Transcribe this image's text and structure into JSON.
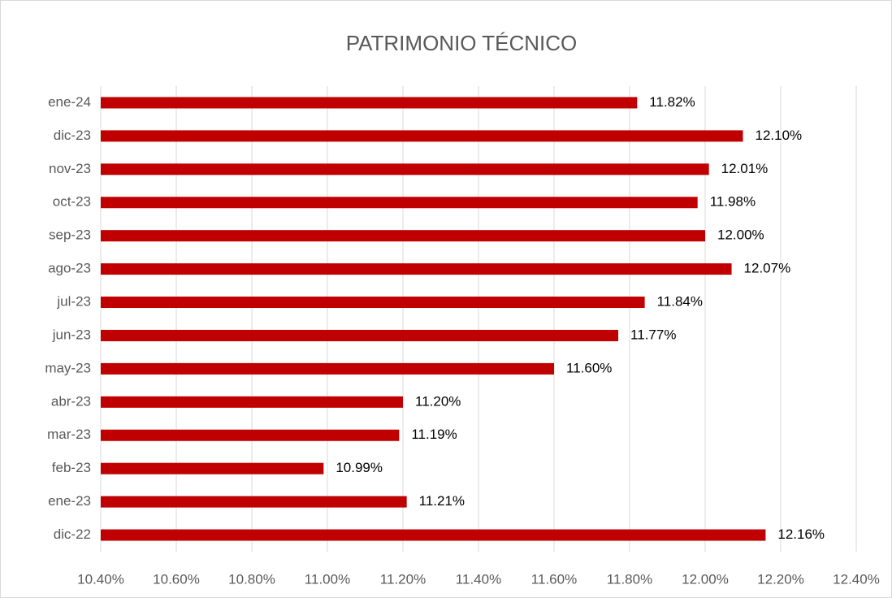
{
  "chart_data": {
    "type": "bar",
    "orientation": "horizontal",
    "title": "PATRIMONIO TÉCNICO",
    "categories": [
      "ene-24",
      "dic-23",
      "nov-23",
      "oct-23",
      "sep-23",
      "ago-23",
      "jul-23",
      "jun-23",
      "may-23",
      "abr-23",
      "mar-23",
      "feb-23",
      "ene-23",
      "dic-22"
    ],
    "values": [
      11.82,
      12.1,
      12.01,
      11.98,
      12.0,
      12.07,
      11.84,
      11.77,
      11.6,
      11.2,
      11.19,
      10.99,
      11.21,
      12.16
    ],
    "value_labels": [
      "11.82%",
      "12.10%",
      "12.01%",
      "11.98%",
      "12.00%",
      "12.07%",
      "11.84%",
      "11.77%",
      "11.60%",
      "11.20%",
      "11.19%",
      "10.99%",
      "11.21%",
      "12.16%"
    ],
    "color": "#c00000",
    "xlim": [
      10.4,
      12.4
    ],
    "xticks": [
      {
        "value": 10.4,
        "label": "10.40%"
      },
      {
        "value": 10.6,
        "label": "10.60%"
      },
      {
        "value": 10.8,
        "label": "10.80%"
      },
      {
        "value": 11.0,
        "label": "11.00%"
      },
      {
        "value": 11.2,
        "label": "11.20%"
      },
      {
        "value": 11.4,
        "label": "11.40%"
      },
      {
        "value": 11.6,
        "label": "11.60%"
      },
      {
        "value": 11.8,
        "label": "11.80%"
      },
      {
        "value": 12.0,
        "label": "12.00%"
      },
      {
        "value": 12.2,
        "label": "12.20%"
      },
      {
        "value": 12.4,
        "label": "12.40%"
      }
    ],
    "grid": true
  }
}
